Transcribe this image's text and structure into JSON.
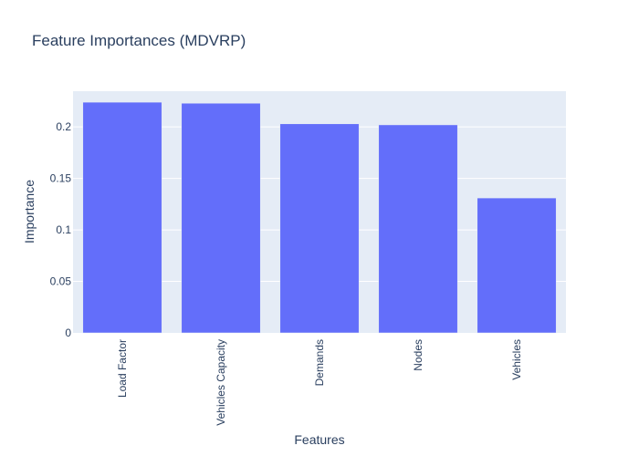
{
  "chart_data": {
    "type": "bar",
    "title": "Feature Importances (MDVRP)",
    "xlabel": "Features",
    "ylabel": "Importance",
    "categories": [
      "Load Factor",
      "Vehicles Capacity",
      "Demands",
      "Nodes",
      "Vehicles"
    ],
    "values": [
      0.224,
      0.223,
      0.203,
      0.202,
      0.131
    ],
    "ylim": [
      0,
      0.2347
    ],
    "yticks": [
      0,
      0.05,
      0.1,
      0.15,
      0.2
    ],
    "ytick_labels": [
      "0",
      "0.05",
      "0.1",
      "0.15",
      "0.2"
    ],
    "grid": true,
    "legend": "none",
    "colors": {
      "bar": "#636efa",
      "plot_background": "#e5ecf6",
      "gridline": "#ffffff",
      "text": "#2a3f5f",
      "page_background": "#ffffff"
    }
  }
}
